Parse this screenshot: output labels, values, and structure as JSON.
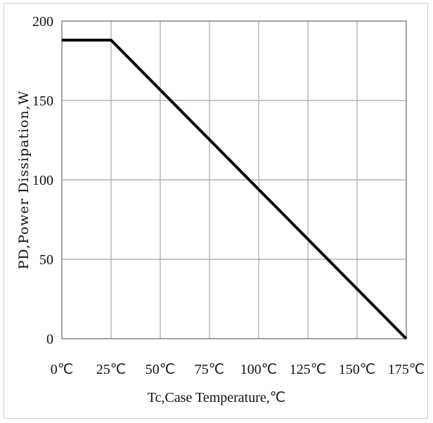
{
  "chart_data": {
    "type": "line",
    "xlabel": "Tc,Case Temperature,℃",
    "ylabel": "PD,Power Dissipation,W",
    "x_tick_labels": [
      "0℃",
      "25℃",
      "50℃",
      "75℃",
      "100℃",
      "125℃",
      "150℃",
      "175℃"
    ],
    "y_tick_labels": [
      "0",
      "50",
      "100",
      "150",
      "200"
    ],
    "xlim": [
      0,
      175
    ],
    "ylim": [
      0,
      200
    ],
    "grid": true,
    "line_color": "#000000",
    "series": [
      {
        "x": [
          0,
          25,
          175
        ],
        "y": [
          188,
          188,
          0
        ]
      }
    ]
  }
}
